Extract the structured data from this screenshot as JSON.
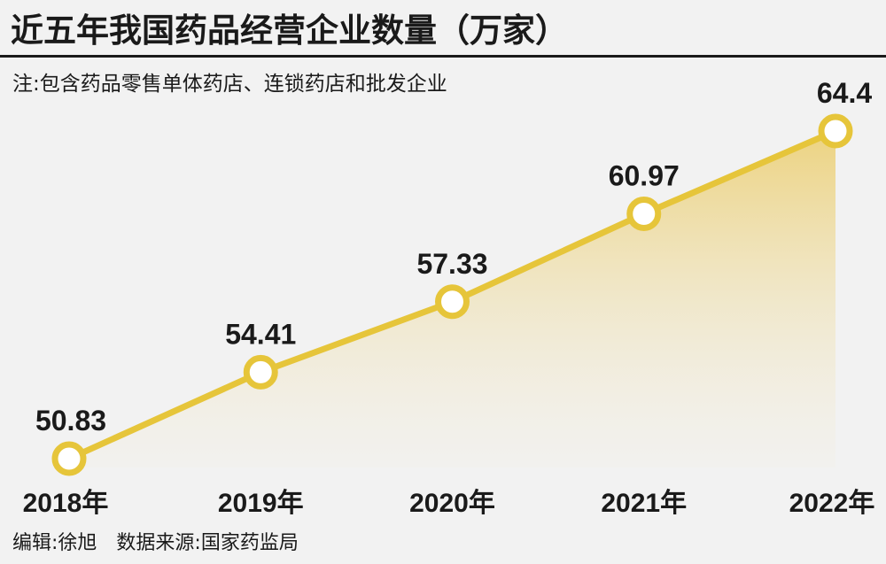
{
  "header": {
    "title": "近五年我国药品经营企业数量（万家）",
    "note": "注:包含药品零售单体药店、连锁药店和批发企业"
  },
  "footer": {
    "editor": "编辑:徐旭",
    "source": "数据来源:国家药监局"
  },
  "colors": {
    "line": "#e6c53a",
    "marker_fill": "#ffffff",
    "area_top": "#ecd17a",
    "background": "#f2f2f2"
  },
  "chart_data": {
    "type": "area",
    "categories": [
      "2018年",
      "2019年",
      "2020年",
      "2021年",
      "2022年"
    ],
    "values": [
      50.83,
      54.41,
      57.33,
      60.97,
      64.4
    ],
    "data_labels": [
      "50.83",
      "54.41",
      "57.33",
      "60.97",
      "64.4"
    ],
    "title": "近五年我国药品经营企业数量（万家）",
    "unit": "万家",
    "grid": false,
    "legend": "none"
  }
}
